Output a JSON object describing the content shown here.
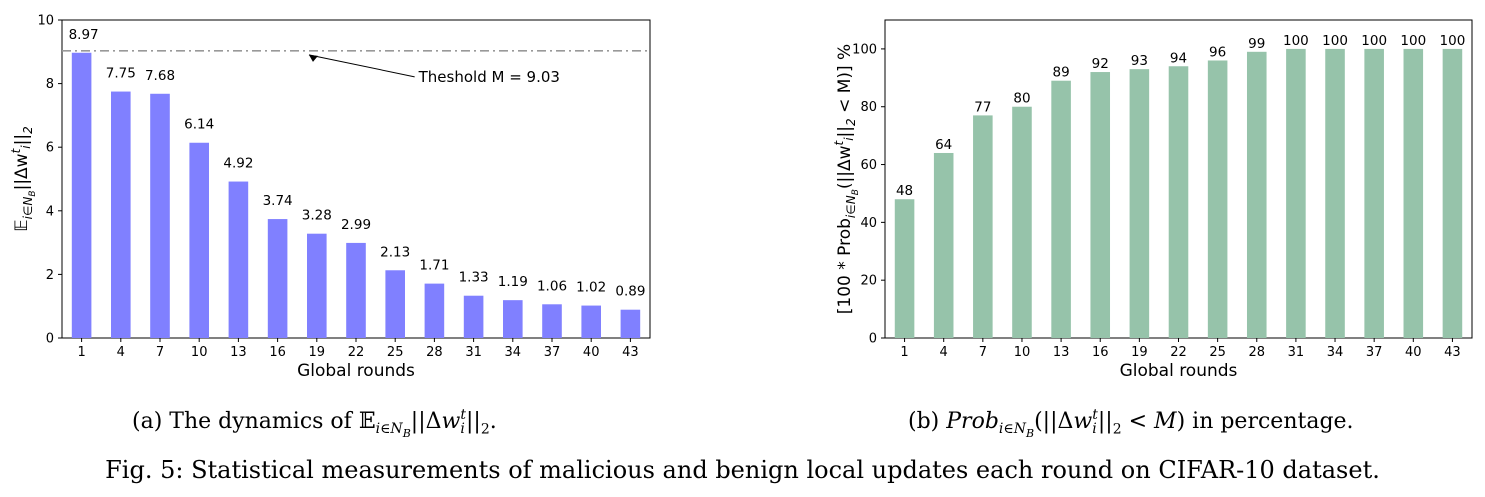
{
  "chart_data": [
    {
      "type": "bar",
      "categories": [
        "1",
        "4",
        "7",
        "10",
        "13",
        "16",
        "19",
        "22",
        "25",
        "28",
        "31",
        "34",
        "37",
        "40",
        "43"
      ],
      "values": [
        8.97,
        7.75,
        7.68,
        6.14,
        4.92,
        3.74,
        3.28,
        2.99,
        2.13,
        1.71,
        1.33,
        1.19,
        1.06,
        1.02,
        0.89
      ],
      "data_labels": [
        "8.97",
        "7.75",
        "7.68",
        "6.14",
        "4.92",
        "3.74",
        "3.28",
        "2.99",
        "2.13",
        "1.71",
        "1.33",
        "1.19",
        "1.06",
        "1.02",
        "0.89"
      ],
      "xlabel": "Global rounds",
      "ylabel_parts": [
        "𝔼",
        "i∈N",
        "B",
        "||Δw",
        "t",
        "i",
        "||",
        "2"
      ],
      "ylim": [
        0,
        10
      ],
      "yticks": [
        "0",
        "2",
        "4",
        "6",
        "8",
        "10"
      ],
      "bar_color": "#8080ff",
      "threshold": {
        "value": 9.03,
        "label": "Theshold M = 9.03",
        "color": "#999999",
        "style": "dash-dot"
      }
    },
    {
      "type": "bar",
      "categories": [
        "1",
        "4",
        "7",
        "10",
        "13",
        "16",
        "19",
        "22",
        "25",
        "28",
        "31",
        "34",
        "37",
        "40",
        "43"
      ],
      "values": [
        48,
        64,
        77,
        80,
        89,
        92,
        93,
        94,
        96,
        99,
        100,
        100,
        100,
        100,
        100
      ],
      "data_labels": [
        "48",
        "64",
        "77",
        "80",
        "89",
        "92",
        "93",
        "94",
        "96",
        "99",
        "100",
        "100",
        "100",
        "100",
        "100"
      ],
      "xlabel": "Global rounds",
      "ylabel_parts": [
        "[100 * Prob",
        "i∈N",
        "B",
        "(||Δw",
        "t",
        "i",
        "||",
        "2",
        " < M)] %"
      ],
      "ylim": [
        0,
        110
      ],
      "yticks": [
        "0",
        "20",
        "40",
        "60",
        "80",
        "100"
      ],
      "bar_color": "#96c3aa"
    }
  ],
  "captions": {
    "a": {
      "pre": "(a) The dynamics of ",
      "e": "𝔼",
      "sub": "i∈N",
      "subsub": "B",
      "mid": "||Δ",
      "w": "w",
      "sup": "t",
      "subi": "i",
      "post": "||",
      "two": "2",
      "end": "."
    },
    "b": {
      "pre": "(b) ",
      "prob": "Prob",
      "sub": "i∈N",
      "subsub": "B",
      "open": "(||Δ",
      "w": "w",
      "sup": "t",
      "subi": "i",
      "post": "||",
      "two": "2",
      "lt": " < ",
      "m": "M",
      "end": ") in percentage."
    },
    "figure": "Fig. 5: Statistical measurements of malicious and benign local updates each round on CIFAR-10 dataset."
  }
}
